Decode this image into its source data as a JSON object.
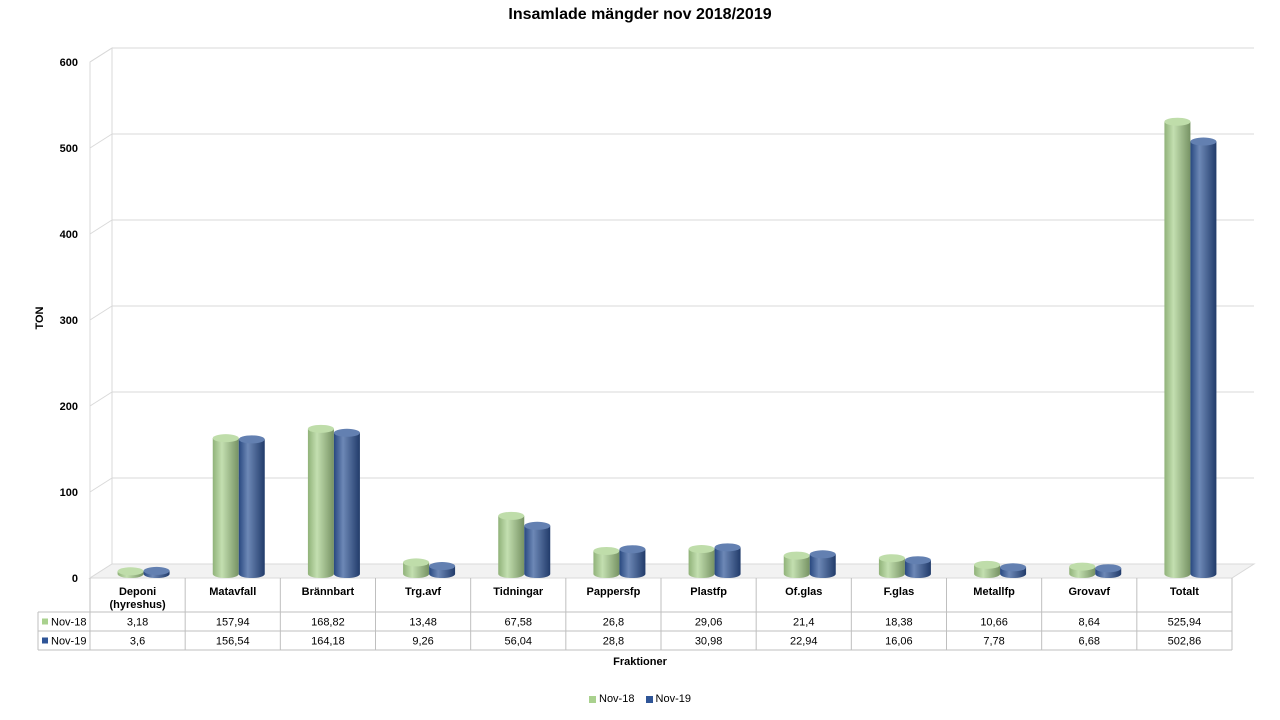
{
  "chart_data": {
    "type": "bar",
    "title": "Insamlade mängder nov 2018/2019",
    "xlabel": "Fraktioner",
    "ylabel": "TON",
    "ylim": [
      0,
      600
    ],
    "yticks": [
      "0",
      "100",
      "200",
      "300",
      "400",
      "500",
      "600"
    ],
    "categories": [
      "Deponi (hyreshus)",
      "Matavfall",
      "Brännbart",
      "Trg.avf",
      "Tidningar",
      "Pappersfp",
      "Plastfp",
      "Of.glas",
      "F.glas",
      "Metallfp",
      "Grovavf",
      "Totalt"
    ],
    "category_lines": [
      [
        "Deponi",
        "(hyreshus)"
      ],
      [
        "Matavfall"
      ],
      [
        "Brännbart"
      ],
      [
        "Trg.avf"
      ],
      [
        "Tidningar"
      ],
      [
        "Pappersfp"
      ],
      [
        "Plastfp"
      ],
      [
        "Of.glas"
      ],
      [
        "F.glas"
      ],
      [
        "Metallfp"
      ],
      [
        "Grovavf"
      ],
      [
        "Totalt"
      ]
    ],
    "series": [
      {
        "name": "Nov-18",
        "color": "#a9d18e",
        "values": [
          3.18,
          157.94,
          168.82,
          13.48,
          67.58,
          26.8,
          29.06,
          21.4,
          18.38,
          10.66,
          8.64,
          525.94
        ],
        "labels": [
          "3,18",
          "157,94",
          "168,82",
          "13,48",
          "67,58",
          "26,8",
          "29,06",
          "21,4",
          "18,38",
          "10,66",
          "8,64",
          "525,94"
        ]
      },
      {
        "name": "Nov-19",
        "color": "#2f5597",
        "values": [
          3.6,
          156.54,
          164.18,
          9.26,
          56.04,
          28.8,
          30.98,
          22.94,
          16.06,
          7.78,
          6.68,
          502.86
        ],
        "labels": [
          "3,6",
          "156,54",
          "164,18",
          "9,26",
          "56,04",
          "28,8",
          "30,98",
          "22,94",
          "16,06",
          "7,78",
          "6,68",
          "502,86"
        ]
      }
    ],
    "grid": true,
    "legend": "bottom",
    "data_table": true
  }
}
